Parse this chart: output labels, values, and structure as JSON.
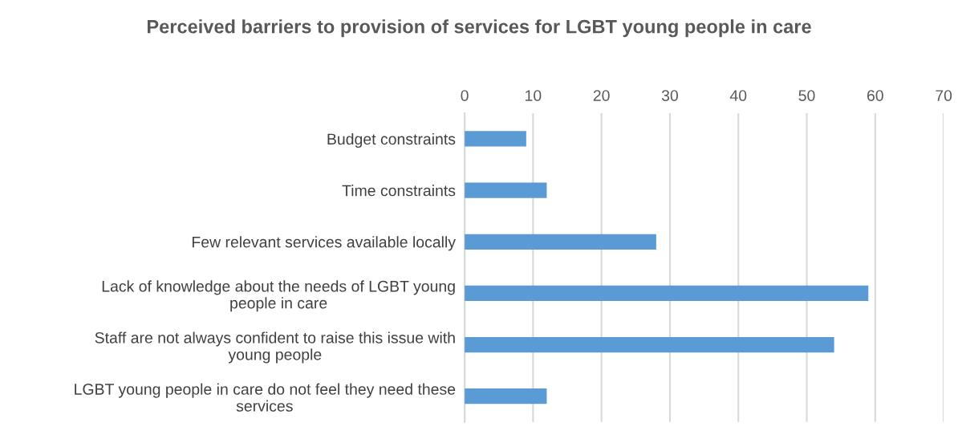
{
  "chart_data": {
    "type": "bar",
    "orientation": "horizontal",
    "title": "Perceived barriers to provision of services for LGBT young people in care",
    "categories": [
      "Budget constraints",
      "Time constraints",
      "Few relevant services available locally",
      "Lack of knowledge about the needs of LGBT young\npeople in care",
      "Staff are not always confident to raise this issue with\nyoung people",
      "LGBT young people in care do not feel they need these\nservices"
    ],
    "values": [
      9,
      12,
      28,
      59,
      54,
      12
    ],
    "color": "#5b9bd5",
    "xlim": [
      0,
      70
    ],
    "xticks": [
      0,
      10,
      20,
      30,
      40,
      50,
      60,
      70
    ],
    "grid": "x"
  }
}
